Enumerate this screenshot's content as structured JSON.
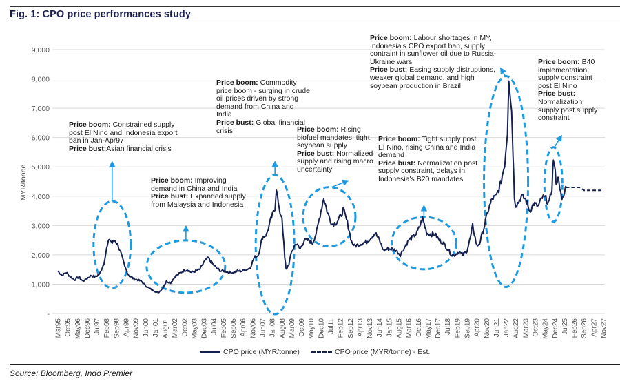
{
  "figure": {
    "title": "Fig. 1: CPO price performances study",
    "source": "Source: Bloomberg, Indo Premier"
  },
  "colors": {
    "series_line": "#14204f",
    "highlight": "#1e9be0",
    "grid": "#d9d9d9"
  },
  "chart_data": {
    "type": "line",
    "title": "Fig. 1: CPO price performances study",
    "xlabel": "",
    "ylabel": "MYR/tonne",
    "ylim": [
      0,
      9000
    ],
    "yticks": [
      0,
      1000,
      2000,
      3000,
      4000,
      5000,
      6000,
      7000,
      8000,
      9000
    ],
    "ytick_labels": [
      "-",
      "1,000",
      "2,000",
      "3,000",
      "4,000",
      "5,000",
      "6,000",
      "7,000",
      "8,000",
      "9,000"
    ],
    "grid": true,
    "legend_position": "bottom-center",
    "x_start": "Mar95",
    "x_end": "Nov27",
    "x_tick_step_months": 7,
    "x_tick_labels": [
      "Mar95",
      "Oct95",
      "May96",
      "Dec96",
      "Jul97",
      "Feb98",
      "Sep98",
      "Apr99",
      "Nov99",
      "Jun00",
      "Jan01",
      "Aug01",
      "Mar02",
      "Oct02",
      "May03",
      "Dec03",
      "Jul04",
      "Feb05",
      "Sep05",
      "Apr06",
      "Nov06",
      "Jun07",
      "Jan08",
      "Aug08",
      "Mar09",
      "Oct09",
      "May10",
      "Dec10",
      "Jul11",
      "Feb12",
      "Sep12",
      "Apr13",
      "Nov13",
      "Jun14",
      "Jan15",
      "Aug15",
      "Mar16",
      "Oct16",
      "May17",
      "Dec17",
      "Jul18",
      "Feb19",
      "Sep19",
      "Apr20",
      "Nov20",
      "Jun21",
      "Jan22",
      "Aug22",
      "Mar23",
      "Oct23",
      "May24",
      "Dec24",
      "Jul25",
      "Feb26",
      "Sep26",
      "Apr27",
      "Nov27"
    ],
    "series": [
      {
        "name": "CPO price (MYR/tonne)",
        "style": "solid",
        "points": [
          [
            "1995-03",
            1450
          ],
          [
            "1995-06",
            1300
          ],
          [
            "1995-09",
            1400
          ],
          [
            "1995-12",
            1250
          ],
          [
            "1996-03",
            1150
          ],
          [
            "1996-06",
            1250
          ],
          [
            "1996-09",
            1100
          ],
          [
            "1996-12",
            1200
          ],
          [
            "1997-03",
            1300
          ],
          [
            "1997-06",
            1250
          ],
          [
            "1997-09",
            1350
          ],
          [
            "1997-12",
            1700
          ],
          [
            "1998-02",
            2200
          ],
          [
            "1998-04",
            2550
          ],
          [
            "1998-06",
            2400
          ],
          [
            "1998-08",
            2500
          ],
          [
            "1998-10",
            2350
          ],
          [
            "1998-12",
            2100
          ],
          [
            "1999-03",
            1600
          ],
          [
            "1999-06",
            1300
          ],
          [
            "1999-09",
            1200
          ],
          [
            "1999-12",
            1150
          ],
          [
            "2000-03",
            1100
          ],
          [
            "2000-06",
            950
          ],
          [
            "2000-09",
            850
          ],
          [
            "2000-12",
            780
          ],
          [
            "2001-03",
            700
          ],
          [
            "2001-06",
            850
          ],
          [
            "2001-09",
            1100
          ],
          [
            "2001-12",
            1050
          ],
          [
            "2002-03",
            1250
          ],
          [
            "2002-06",
            1350
          ],
          [
            "2002-09",
            1450
          ],
          [
            "2002-12",
            1500
          ],
          [
            "2003-03",
            1400
          ],
          [
            "2003-06",
            1450
          ],
          [
            "2003-09",
            1500
          ],
          [
            "2003-12",
            1750
          ],
          [
            "2004-03",
            1900
          ],
          [
            "2004-06",
            1700
          ],
          [
            "2004-09",
            1550
          ],
          [
            "2004-12",
            1450
          ],
          [
            "2005-03",
            1450
          ],
          [
            "2005-06",
            1400
          ],
          [
            "2005-09",
            1400
          ],
          [
            "2005-12",
            1450
          ],
          [
            "2006-03",
            1450
          ],
          [
            "2006-06",
            1500
          ],
          [
            "2006-09",
            1550
          ],
          [
            "2006-12",
            1900
          ],
          [
            "2007-03",
            2000
          ],
          [
            "2007-06",
            2600
          ],
          [
            "2007-09",
            2700
          ],
          [
            "2007-12",
            3200
          ],
          [
            "2008-03",
            3600
          ],
          [
            "2008-04",
            4300
          ],
          [
            "2008-06",
            3500
          ],
          [
            "2008-08",
            3300
          ],
          [
            "2008-10",
            1900
          ],
          [
            "2008-11",
            1500
          ],
          [
            "2009-01",
            1700
          ],
          [
            "2009-03",
            2100
          ],
          [
            "2009-06",
            2400
          ],
          [
            "2009-09",
            2200
          ],
          [
            "2009-12",
            2500
          ],
          [
            "2010-03",
            2500
          ],
          [
            "2010-06",
            2400
          ],
          [
            "2010-09",
            2800
          ],
          [
            "2010-12",
            3500
          ],
          [
            "2011-02",
            3950
          ],
          [
            "2011-05",
            3400
          ],
          [
            "2011-08",
            3050
          ],
          [
            "2011-11",
            3100
          ],
          [
            "2012-02",
            3300
          ],
          [
            "2012-04",
            3550
          ],
          [
            "2012-07",
            3100
          ],
          [
            "2012-10",
            2450
          ],
          [
            "2012-12",
            2300
          ],
          [
            "2013-03",
            2350
          ],
          [
            "2013-06",
            2400
          ],
          [
            "2013-09",
            2450
          ],
          [
            "2013-12",
            2600
          ],
          [
            "2014-03",
            2750
          ],
          [
            "2014-06",
            2500
          ],
          [
            "2014-09",
            2150
          ],
          [
            "2014-12",
            2200
          ],
          [
            "2015-03",
            2200
          ],
          [
            "2015-06",
            2150
          ],
          [
            "2015-09",
            2000
          ],
          [
            "2015-12",
            2250
          ],
          [
            "2016-03",
            2500
          ],
          [
            "2016-06",
            2600
          ],
          [
            "2016-09",
            2750
          ],
          [
            "2016-12",
            3100
          ],
          [
            "2017-01",
            3250
          ],
          [
            "2017-04",
            2750
          ],
          [
            "2017-07",
            2700
          ],
          [
            "2017-10",
            2700
          ],
          [
            "2018-01",
            2500
          ],
          [
            "2018-04",
            2400
          ],
          [
            "2018-07",
            2200
          ],
          [
            "2018-10",
            2000
          ],
          [
            "2018-12",
            2000
          ],
          [
            "2019-03",
            2100
          ],
          [
            "2019-06",
            2000
          ],
          [
            "2019-09",
            2150
          ],
          [
            "2019-12",
            2700
          ],
          [
            "2020-01",
            3000
          ],
          [
            "2020-04",
            2300
          ],
          [
            "2020-06",
            2400
          ],
          [
            "2020-09",
            2900
          ],
          [
            "2020-12",
            3500
          ],
          [
            "2021-03",
            3900
          ],
          [
            "2021-06",
            4000
          ],
          [
            "2021-09",
            4400
          ],
          [
            "2021-12",
            5100
          ],
          [
            "2022-02",
            6200
          ],
          [
            "2022-03",
            8100
          ],
          [
            "2022-05",
            6900
          ],
          [
            "2022-06",
            5500
          ],
          [
            "2022-07",
            4000
          ],
          [
            "2022-08",
            3700
          ],
          [
            "2022-10",
            3800
          ],
          [
            "2022-12",
            4000
          ],
          [
            "2023-03",
            3900
          ],
          [
            "2023-06",
            3500
          ],
          [
            "2023-09",
            3750
          ],
          [
            "2023-12",
            3650
          ],
          [
            "2024-03",
            3950
          ],
          [
            "2024-05",
            3950
          ],
          [
            "2024-08",
            3750
          ],
          [
            "2024-10",
            4300
          ],
          [
            "2024-11",
            5300
          ],
          [
            "2025-01",
            4500
          ],
          [
            "2025-03",
            4600
          ],
          [
            "2025-05",
            3800
          ],
          [
            "2025-07",
            4100
          ],
          [
            "2025-08",
            4350
          ]
        ]
      },
      {
        "name": "CPO price (MYR/tonne) - Est.",
        "style": "dashed",
        "points": [
          [
            "2025-08",
            4300
          ],
          [
            "2026-06",
            4300
          ],
          [
            "2026-09",
            4200
          ],
          [
            "2027-11",
            4200
          ]
        ]
      }
    ],
    "annotations": [
      {
        "ellipse_center": [
          "1998-06",
          2350
        ],
        "arrow_to": [
          "1998-06",
          5100
        ],
        "boom_label": "Price boom:",
        "boom_text": "Constrained supply post El Nino and Indonesia export ban in Jan-Apr97",
        "bust_label": "Price bust:",
        "bust_text": "Asian financial crisis"
      },
      {
        "ellipse_center": [
          "2002-11",
          1600
        ],
        "arrow_to": [
          "2002-11",
          2900
        ],
        "boom_label": "Price boom:",
        "boom_text": "Improving demand in China and India",
        "bust_label": "Price bust:",
        "bust_text": "Expanded supply from Malaysia and Indonesia"
      },
      {
        "ellipse_center": [
          "2008-03",
          2350
        ],
        "arrow_to": [
          "2008-03",
          5100
        ],
        "boom_label": "Price boom:",
        "boom_text": "Commodity price boom - surging in crude oil prices driven by strong demand from China and India",
        "bust_label": "Price bust:",
        "bust_text": "Global financial crisis"
      },
      {
        "ellipse_center": [
          "2011-06",
          3300
        ],
        "arrow_to": [
          "2012-06",
          4500
        ],
        "boom_label": "Price boom:",
        "boom_text": "Rising biofuel mandates, tight soybean supply",
        "bust_label": "Price bust:",
        "bust_text": "Normalized supply and rising macro uncertainty"
      },
      {
        "ellipse_center": [
          "2017-02",
          2400
        ],
        "arrow_to": [
          "2017-02",
          3600
        ],
        "boom_label": "Price boom:",
        "boom_text": "Tight supply post El Nino, rising China and India demand",
        "bust_label": "Price bust:",
        "bust_text": "Normalization post supply constraint, delays in Indonesia's B20 mandates"
      },
      {
        "ellipse_center": [
          "2022-01",
          4500
        ],
        "arrow_to": [
          "2021-10",
          8300
        ],
        "boom_label": "Price boom:",
        "boom_text": "Labour shortages in MY, Indonesia's CPO export ban, supply contraint in sunflower oil due to Russia-Ukraine wars",
        "bust_label": "Price bust:",
        "bust_text": "Easing supply distruptions, weaker global demand, and high soybean production in Brazil"
      },
      {
        "ellipse_center": [
          "2024-11",
          4400
        ],
        "arrow_to": [
          "2025-04",
          6000
        ],
        "boom_label": "Price boom:",
        "boom_text": "B40 implementation, supply constraint post El Nino",
        "bust_label": "Price bust:",
        "bust_text": "Normalization supply post supply constraint"
      }
    ]
  },
  "legend": [
    {
      "label": "CPO price (MYR/tonne)",
      "style": "solid"
    },
    {
      "label": "CPO price (MYR/tonne) - Est.",
      "style": "dashed"
    }
  ]
}
